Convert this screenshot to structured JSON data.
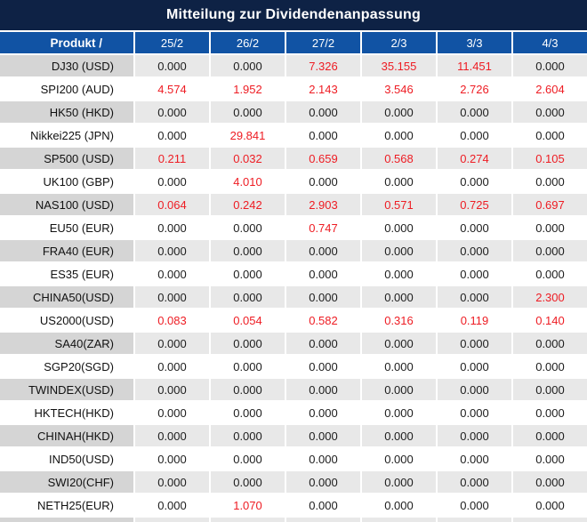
{
  "title": "Mitteilung zur Dividendenanpassung",
  "colors": {
    "title_bar_bg": "#0e2245",
    "header_row_bg": "#1153a4",
    "row_gray_label_bg": "#d5d5d5",
    "row_gray_value_bg": "#e8e8e8",
    "row_white_bg": "#ffffff",
    "red_value": "#ee1c23",
    "black_value": "#1c1c1c",
    "header_text": "#ffffff"
  },
  "table": {
    "product_header": "Produkt /",
    "date_headers": [
      "25/2",
      "26/2",
      "27/2",
      "2/3",
      "3/3",
      "4/3"
    ],
    "rows": [
      {
        "product": "DJ30 (USD)",
        "values": [
          "0.000",
          "0.000",
          "7.326",
          "35.155",
          "11.451",
          "0.000"
        ],
        "red": [
          false,
          false,
          true,
          true,
          true,
          false
        ]
      },
      {
        "product": "SPI200 (AUD)",
        "values": [
          "4.574",
          "1.952",
          "2.143",
          "3.546",
          "2.726",
          "2.604"
        ],
        "red": [
          true,
          true,
          true,
          true,
          true,
          true
        ]
      },
      {
        "product": "HK50 (HKD)",
        "values": [
          "0.000",
          "0.000",
          "0.000",
          "0.000",
          "0.000",
          "0.000"
        ],
        "red": [
          false,
          false,
          false,
          false,
          false,
          false
        ]
      },
      {
        "product": "Nikkei225 (JPN)",
        "values": [
          "0.000",
          "29.841",
          "0.000",
          "0.000",
          "0.000",
          "0.000"
        ],
        "red": [
          false,
          true,
          false,
          false,
          false,
          false
        ]
      },
      {
        "product": "SP500 (USD)",
        "values": [
          "0.211",
          "0.032",
          "0.659",
          "0.568",
          "0.274",
          "0.105"
        ],
        "red": [
          true,
          true,
          true,
          true,
          true,
          true
        ]
      },
      {
        "product": "UK100 (GBP)",
        "values": [
          "0.000",
          "4.010",
          "0.000",
          "0.000",
          "0.000",
          "0.000"
        ],
        "red": [
          false,
          true,
          false,
          false,
          false,
          false
        ]
      },
      {
        "product": "NAS100 (USD)",
        "values": [
          "0.064",
          "0.242",
          "2.903",
          "0.571",
          "0.725",
          "0.697"
        ],
        "red": [
          true,
          true,
          true,
          true,
          true,
          true
        ]
      },
      {
        "product": "EU50 (EUR)",
        "values": [
          "0.000",
          "0.000",
          "0.747",
          "0.000",
          "0.000",
          "0.000"
        ],
        "red": [
          false,
          false,
          true,
          false,
          false,
          false
        ]
      },
      {
        "product": "FRA40 (EUR)",
        "values": [
          "0.000",
          "0.000",
          "0.000",
          "0.000",
          "0.000",
          "0.000"
        ],
        "red": [
          false,
          false,
          false,
          false,
          false,
          false
        ]
      },
      {
        "product": "ES35 (EUR)",
        "values": [
          "0.000",
          "0.000",
          "0.000",
          "0.000",
          "0.000",
          "0.000"
        ],
        "red": [
          false,
          false,
          false,
          false,
          false,
          false
        ]
      },
      {
        "product": "CHINA50(USD)",
        "values": [
          "0.000",
          "0.000",
          "0.000",
          "0.000",
          "0.000",
          "2.300"
        ],
        "red": [
          false,
          false,
          false,
          false,
          false,
          true
        ]
      },
      {
        "product": "US2000(USD)",
        "values": [
          "0.083",
          "0.054",
          "0.582",
          "0.316",
          "0.119",
          "0.140"
        ],
        "red": [
          true,
          true,
          true,
          true,
          true,
          true
        ]
      },
      {
        "product": "SA40(ZAR)",
        "values": [
          "0.000",
          "0.000",
          "0.000",
          "0.000",
          "0.000",
          "0.000"
        ],
        "red": [
          false,
          false,
          false,
          false,
          false,
          false
        ]
      },
      {
        "product": "SGP20(SGD)",
        "values": [
          "0.000",
          "0.000",
          "0.000",
          "0.000",
          "0.000",
          "0.000"
        ],
        "red": [
          false,
          false,
          false,
          false,
          false,
          false
        ]
      },
      {
        "product": "TWINDEX(USD)",
        "values": [
          "0.000",
          "0.000",
          "0.000",
          "0.000",
          "0.000",
          "0.000"
        ],
        "red": [
          false,
          false,
          false,
          false,
          false,
          false
        ]
      },
      {
        "product": "HKTECH(HKD)",
        "values": [
          "0.000",
          "0.000",
          "0.000",
          "0.000",
          "0.000",
          "0.000"
        ],
        "red": [
          false,
          false,
          false,
          false,
          false,
          false
        ]
      },
      {
        "product": "CHINAH(HKD)",
        "values": [
          "0.000",
          "0.000",
          "0.000",
          "0.000",
          "0.000",
          "0.000"
        ],
        "red": [
          false,
          false,
          false,
          false,
          false,
          false
        ]
      },
      {
        "product": "IND50(USD)",
        "values": [
          "0.000",
          "0.000",
          "0.000",
          "0.000",
          "0.000",
          "0.000"
        ],
        "red": [
          false,
          false,
          false,
          false,
          false,
          false
        ]
      },
      {
        "product": "SWI20(CHF)",
        "values": [
          "0.000",
          "0.000",
          "0.000",
          "0.000",
          "0.000",
          "0.000"
        ],
        "red": [
          false,
          false,
          false,
          false,
          false,
          false
        ]
      },
      {
        "product": "NETH25(EUR)",
        "values": [
          "0.000",
          "1.070",
          "0.000",
          "0.000",
          "0.000",
          "0.000"
        ],
        "red": [
          false,
          true,
          false,
          false,
          false,
          false
        ]
      }
    ]
  }
}
